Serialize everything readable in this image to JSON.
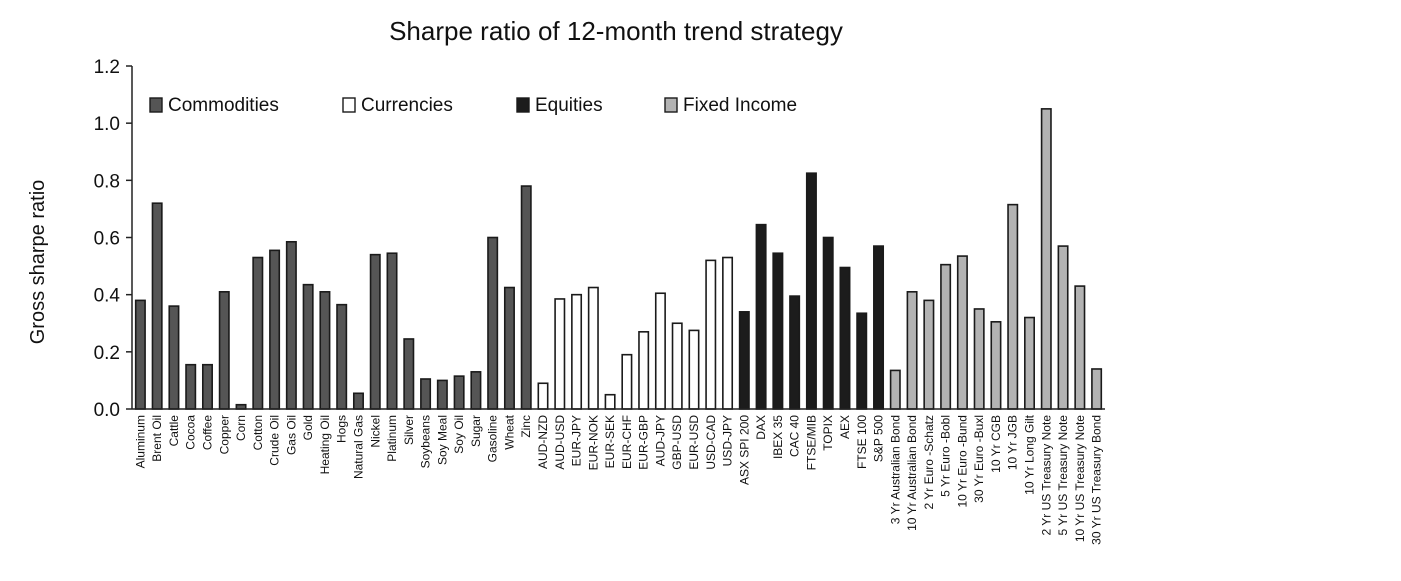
{
  "chart_data": {
    "type": "bar",
    "title": "Sharpe ratio of 12-month trend strategy",
    "xlabel": "",
    "ylabel": "Gross sharpe ratio",
    "ylim": [
      0,
      1.2
    ],
    "yticks": [
      "0.0",
      "0.2",
      "0.4",
      "0.6",
      "0.8",
      "1.0",
      "1.2"
    ],
    "grid": false,
    "legend_position": "top",
    "colors": {
      "Commodities": "#555555",
      "Currencies": "#ffffff",
      "Equities": "#1c1c1c",
      "Fixed Income": "#b3b3b3"
    },
    "legend": [
      "Commodities",
      "Currencies",
      "Equities",
      "Fixed Income"
    ],
    "bars": [
      {
        "label": "Aluminum",
        "value": 0.38,
        "group": "Commodities"
      },
      {
        "label": "Brent Oil",
        "value": 0.72,
        "group": "Commodities"
      },
      {
        "label": "Cattle",
        "value": 0.36,
        "group": "Commodities"
      },
      {
        "label": "Cocoa",
        "value": 0.155,
        "group": "Commodities"
      },
      {
        "label": "Coffee",
        "value": 0.155,
        "group": "Commodities"
      },
      {
        "label": "Copper",
        "value": 0.41,
        "group": "Commodities"
      },
      {
        "label": "Corn",
        "value": 0.015,
        "group": "Commodities"
      },
      {
        "label": "Cotton",
        "value": 0.53,
        "group": "Commodities"
      },
      {
        "label": "Crude Oil",
        "value": 0.555,
        "group": "Commodities"
      },
      {
        "label": "Gas Oil",
        "value": 0.585,
        "group": "Commodities"
      },
      {
        "label": "Gold",
        "value": 0.435,
        "group": "Commodities"
      },
      {
        "label": "Heating Oil",
        "value": 0.41,
        "group": "Commodities"
      },
      {
        "label": "Hogs",
        "value": 0.365,
        "group": "Commodities"
      },
      {
        "label": "Natural Gas",
        "value": 0.055,
        "group": "Commodities"
      },
      {
        "label": "Nickel",
        "value": 0.54,
        "group": "Commodities"
      },
      {
        "label": "Platinum",
        "value": 0.545,
        "group": "Commodities"
      },
      {
        "label": "Silver",
        "value": 0.245,
        "group": "Commodities"
      },
      {
        "label": "Soybeans",
        "value": 0.105,
        "group": "Commodities"
      },
      {
        "label": "Soy Meal",
        "value": 0.1,
        "group": "Commodities"
      },
      {
        "label": "Soy Oil",
        "value": 0.115,
        "group": "Commodities"
      },
      {
        "label": "Sugar",
        "value": 0.13,
        "group": "Commodities"
      },
      {
        "label": "Gasoline",
        "value": 0.6,
        "group": "Commodities"
      },
      {
        "label": "Wheat",
        "value": 0.425,
        "group": "Commodities"
      },
      {
        "label": "Zinc",
        "value": 0.78,
        "group": "Commodities"
      },
      {
        "label": "AUD-NZD",
        "value": 0.09,
        "group": "Currencies"
      },
      {
        "label": "AUD-USD",
        "value": 0.385,
        "group": "Currencies"
      },
      {
        "label": "EUR-JPY",
        "value": 0.4,
        "group": "Currencies"
      },
      {
        "label": "EUR-NOK",
        "value": 0.425,
        "group": "Currencies"
      },
      {
        "label": "EUR-SEK",
        "value": 0.05,
        "group": "Currencies"
      },
      {
        "label": "EUR-CHF",
        "value": 0.19,
        "group": "Currencies"
      },
      {
        "label": "EUR-GBP",
        "value": 0.27,
        "group": "Currencies"
      },
      {
        "label": "AUD-JPY",
        "value": 0.405,
        "group": "Currencies"
      },
      {
        "label": "GBP-USD",
        "value": 0.3,
        "group": "Currencies"
      },
      {
        "label": "EUR-USD",
        "value": 0.275,
        "group": "Currencies"
      },
      {
        "label": "USD-CAD",
        "value": 0.52,
        "group": "Currencies"
      },
      {
        "label": "USD-JPY",
        "value": 0.53,
        "group": "Currencies"
      },
      {
        "label": "ASX SPI 200",
        "value": 0.34,
        "group": "Equities"
      },
      {
        "label": "DAX",
        "value": 0.645,
        "group": "Equities"
      },
      {
        "label": "IBEX 35",
        "value": 0.545,
        "group": "Equities"
      },
      {
        "label": "CAC 40",
        "value": 0.395,
        "group": "Equities"
      },
      {
        "label": "FTSE/MIB",
        "value": 0.825,
        "group": "Equities"
      },
      {
        "label": "TOPIX",
        "value": 0.6,
        "group": "Equities"
      },
      {
        "label": "AEX",
        "value": 0.495,
        "group": "Equities"
      },
      {
        "label": "FTSE 100",
        "value": 0.335,
        "group": "Equities"
      },
      {
        "label": "S&P 500",
        "value": 0.57,
        "group": "Equities"
      },
      {
        "label": "3 Yr Australian Bond",
        "value": 0.135,
        "group": "Fixed Income"
      },
      {
        "label": "10 Yr Australian Bond",
        "value": 0.41,
        "group": "Fixed Income"
      },
      {
        "label": "2 Yr Euro -Schatz",
        "value": 0.38,
        "group": "Fixed Income"
      },
      {
        "label": "5 Yr Euro -Bobl",
        "value": 0.505,
        "group": "Fixed Income"
      },
      {
        "label": "10 Yr Euro -Bund",
        "value": 0.535,
        "group": "Fixed Income"
      },
      {
        "label": "30 Yr Euro -Buxl",
        "value": 0.35,
        "group": "Fixed Income"
      },
      {
        "label": "10 Yr CGB",
        "value": 0.305,
        "group": "Fixed Income"
      },
      {
        "label": "10 Yr JGB",
        "value": 0.715,
        "group": "Fixed Income"
      },
      {
        "label": "10 Yr Long Gilt",
        "value": 0.32,
        "group": "Fixed Income"
      },
      {
        "label": "2 Yr US Treasury Note",
        "value": 1.05,
        "group": "Fixed Income"
      },
      {
        "label": "5 Yr US Treasury Note",
        "value": 0.57,
        "group": "Fixed Income"
      },
      {
        "label": "10 Yr US Treasury Note",
        "value": 0.43,
        "group": "Fixed Income"
      },
      {
        "label": "30 Yr US Treasury Bond",
        "value": 0.14,
        "group": "Fixed Income"
      }
    ]
  }
}
